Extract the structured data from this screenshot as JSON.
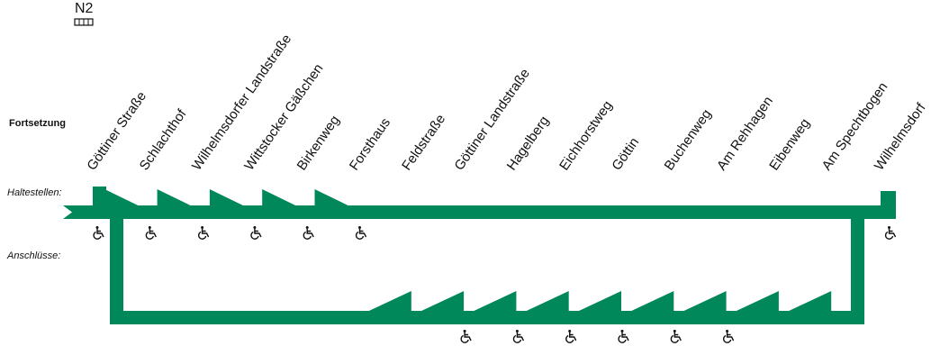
{
  "line": "N2",
  "continuation_label": "Fortsetzung",
  "stops_label": "Haltestellen:",
  "connections_label": "Anschlüsse:",
  "stops": [
    {
      "name": "Göttiner Straße",
      "accessible": true
    },
    {
      "name": "Schlachthof",
      "accessible": true
    },
    {
      "name": "Wilhelmsdorfer Landstraße",
      "accessible": true
    },
    {
      "name": "Wittstocker Gäßchen",
      "accessible": true
    },
    {
      "name": "Birkenweg",
      "accessible": true
    },
    {
      "name": "Forsthaus",
      "accessible": true
    },
    {
      "name": "Feldstraße",
      "accessible": false
    },
    {
      "name": "Göttiner Landstraße",
      "accessible": true
    },
    {
      "name": "Hagelberg",
      "accessible": true
    },
    {
      "name": "Eichhorstweg",
      "accessible": true
    },
    {
      "name": "Göttin",
      "accessible": true
    },
    {
      "name": "Buchenweg",
      "accessible": true
    },
    {
      "name": "Am Rehhagen",
      "accessible": true
    },
    {
      "name": "Eibenweg",
      "accessible": false
    },
    {
      "name": "Am Spechtbogen",
      "accessible": false
    },
    {
      "name": "Wilhelmsdorf",
      "accessible": true
    }
  ]
}
